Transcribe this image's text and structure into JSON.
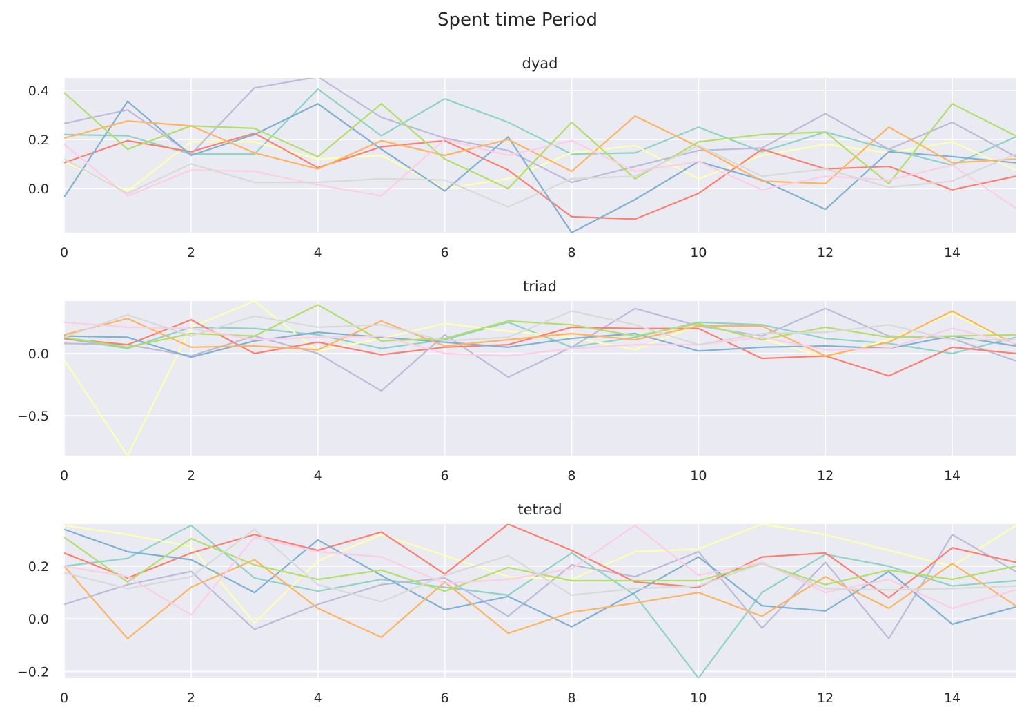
{
  "figure": {
    "title": "Spent time Period"
  },
  "colors": [
    "#8dd3c7",
    "#ffffb3",
    "#bebada",
    "#fb8072",
    "#80b1d3",
    "#fdb462",
    "#b3de69",
    "#fccde5",
    "#d9d9d9"
  ],
  "chart_data": [
    {
      "type": "line",
      "title": "dyad",
      "xlabel": "",
      "ylabel": "",
      "xlim": [
        0,
        15
      ],
      "ylim": [
        -0.18,
        0.45
      ],
      "xticks": [
        0,
        2,
        4,
        6,
        8,
        10,
        12,
        14
      ],
      "xtick_labels": [
        "0",
        "2",
        "4",
        "6",
        "8",
        "10",
        "12",
        "14"
      ],
      "yticks": [
        0.0,
        0.2,
        0.4
      ],
      "ytick_labels": [
        "0.0",
        "0.2",
        "0.4"
      ],
      "grid": true,
      "x": [
        0,
        1,
        2,
        3,
        4,
        5,
        6,
        7,
        8,
        9,
        10,
        11,
        12,
        13,
        14,
        15
      ],
      "series": [
        {
          "values": [
            0.22,
            0.215,
            0.14,
            0.14,
            0.405,
            0.215,
            0.365,
            0.27,
            0.14,
            0.145,
            0.25,
            0.15,
            0.23,
            0.16,
            0.095,
            0.21
          ]
        },
        {
          "values": [
            0.11,
            -0.01,
            0.19,
            0.19,
            0.12,
            0.135,
            0.0,
            0.04,
            0.145,
            0.175,
            0.04,
            0.135,
            0.18,
            0.145,
            0.19,
            0.075
          ]
        },
        {
          "values": [
            0.265,
            0.32,
            0.14,
            0.41,
            0.455,
            0.29,
            0.205,
            0.155,
            0.025,
            0.09,
            0.155,
            0.165,
            0.305,
            0.16,
            0.27,
            0.13
          ]
        },
        {
          "values": [
            0.105,
            0.195,
            0.15,
            0.225,
            0.085,
            0.17,
            0.195,
            0.075,
            -0.115,
            -0.125,
            -0.02,
            0.16,
            0.08,
            0.09,
            -0.005,
            0.05
          ]
        },
        {
          "values": [
            -0.035,
            0.355,
            0.135,
            0.22,
            0.345,
            0.16,
            -0.01,
            0.21,
            -0.18,
            -0.045,
            0.11,
            0.035,
            -0.085,
            0.15,
            0.13,
            0.105
          ]
        },
        {
          "values": [
            0.205,
            0.275,
            0.255,
            0.145,
            0.08,
            0.195,
            0.135,
            0.2,
            0.07,
            0.295,
            0.17,
            0.03,
            0.02,
            0.25,
            0.105,
            0.12
          ]
        },
        {
          "values": [
            0.39,
            0.16,
            0.255,
            0.245,
            0.13,
            0.345,
            0.12,
            0.0,
            0.27,
            0.04,
            0.19,
            0.22,
            0.23,
            0.02,
            0.345,
            0.215
          ]
        },
        {
          "values": [
            0.18,
            -0.03,
            0.075,
            0.07,
            0.015,
            -0.03,
            0.2,
            0.135,
            0.195,
            0.07,
            0.11,
            -0.005,
            0.05,
            0.035,
            0.095,
            -0.08
          ]
        },
        {
          "values": [
            0.12,
            -0.02,
            0.1,
            0.025,
            0.025,
            0.04,
            0.035,
            -0.075,
            0.04,
            0.05,
            0.175,
            0.05,
            0.08,
            0.005,
            0.03,
            0.14
          ]
        }
      ]
    },
    {
      "type": "line",
      "title": "triad",
      "xlabel": "",
      "ylabel": "",
      "xlim": [
        0,
        15
      ],
      "ylim": [
        -0.82,
        0.42
      ],
      "xticks": [
        0,
        2,
        4,
        6,
        8,
        10,
        12,
        14
      ],
      "xtick_labels": [
        "0",
        "2",
        "4",
        "6",
        "8",
        "10",
        "12",
        "14"
      ],
      "yticks": [
        0.0,
        -0.5
      ],
      "ytick_labels": [
        "0.0",
        "−0.5"
      ],
      "grid": true,
      "x": [
        0,
        1,
        2,
        3,
        4,
        5,
        6,
        7,
        8,
        9,
        10,
        11,
        12,
        13,
        14,
        15
      ],
      "series": [
        {
          "values": [
            0.12,
            0.04,
            0.21,
            0.2,
            0.15,
            0.04,
            0.11,
            0.25,
            0.05,
            0.13,
            0.25,
            0.23,
            0.12,
            0.08,
            0.0,
            0.13
          ]
        },
        {
          "values": [
            -0.05,
            -0.82,
            0.21,
            0.42,
            0.02,
            0.12,
            0.24,
            0.18,
            0.13,
            0.03,
            0.23,
            0.12,
            -0.03,
            0.11,
            0.32,
            0.07
          ]
        },
        {
          "values": [
            0.08,
            0.07,
            -0.02,
            0.14,
            0.0,
            -0.3,
            0.15,
            -0.19,
            0.05,
            0.36,
            0.22,
            0.14,
            0.36,
            0.14,
            0.12,
            -0.06
          ]
        },
        {
          "values": [
            0.12,
            0.07,
            0.27,
            0.0,
            0.09,
            -0.01,
            0.05,
            0.07,
            0.21,
            0.2,
            0.2,
            -0.04,
            -0.02,
            -0.18,
            0.05,
            0.0
          ]
        },
        {
          "values": [
            0.14,
            0.13,
            -0.03,
            0.1,
            0.17,
            0.13,
            0.09,
            0.05,
            0.12,
            0.16,
            0.02,
            0.05,
            0.06,
            0.04,
            0.14,
            0.06
          ]
        },
        {
          "values": [
            0.15,
            0.28,
            0.05,
            0.06,
            0.03,
            0.26,
            0.06,
            0.11,
            0.16,
            0.11,
            0.22,
            0.22,
            -0.02,
            0.09,
            0.34,
            0.07
          ]
        },
        {
          "values": [
            0.13,
            0.05,
            0.16,
            0.14,
            0.39,
            0.1,
            0.12,
            0.26,
            0.23,
            0.14,
            0.24,
            0.11,
            0.21,
            0.13,
            0.14,
            0.15
          ]
        },
        {
          "values": [
            0.25,
            0.21,
            0.2,
            0.11,
            0.13,
            0.14,
            0.0,
            -0.02,
            0.04,
            0.07,
            0.07,
            0.13,
            0.03,
            0.04,
            0.2,
            0.08
          ]
        },
        {
          "values": [
            0.13,
            0.31,
            0.14,
            0.3,
            0.21,
            0.23,
            0.1,
            0.13,
            0.34,
            0.23,
            0.07,
            0.16,
            0.17,
            0.23,
            0.11,
            0.11
          ]
        }
      ]
    },
    {
      "type": "line",
      "title": "tetrad",
      "xlabel": "",
      "ylabel": "",
      "xlim": [
        0,
        15
      ],
      "ylim": [
        -0.225,
        0.36
      ],
      "xticks": [
        0,
        2,
        4,
        6,
        8,
        10,
        12,
        14
      ],
      "xtick_labels": [
        "0",
        "2",
        "4",
        "6",
        "8",
        "10",
        "12",
        "14"
      ],
      "yticks": [
        -0.2,
        0.0,
        0.2
      ],
      "ytick_labels": [
        "−0.2",
        "0.0",
        "0.2"
      ],
      "grid": true,
      "x": [
        0,
        1,
        2,
        3,
        4,
        5,
        6,
        7,
        8,
        9,
        10,
        11,
        12,
        13,
        14,
        15
      ],
      "series": [
        {
          "values": [
            0.2,
            0.23,
            0.355,
            0.155,
            0.105,
            0.15,
            0.12,
            0.09,
            0.25,
            0.09,
            -0.225,
            0.1,
            0.245,
            0.2,
            0.125,
            0.145
          ]
        },
        {
          "values": [
            0.355,
            0.32,
            0.275,
            -0.015,
            0.22,
            0.32,
            0.24,
            0.16,
            0.15,
            0.255,
            0.265,
            0.36,
            0.32,
            0.26,
            0.2,
            0.355
          ]
        },
        {
          "values": [
            0.055,
            0.13,
            0.18,
            -0.04,
            0.055,
            0.13,
            0.155,
            0.01,
            0.205,
            0.16,
            0.255,
            -0.035,
            0.215,
            -0.075,
            0.32,
            0.18
          ]
        },
        {
          "values": [
            0.25,
            0.155,
            0.25,
            0.32,
            0.26,
            0.33,
            0.17,
            0.36,
            0.26,
            0.14,
            0.12,
            0.235,
            0.25,
            0.08,
            0.27,
            0.215
          ]
        },
        {
          "values": [
            0.34,
            0.255,
            0.225,
            0.1,
            0.3,
            0.165,
            0.035,
            0.085,
            -0.03,
            0.1,
            0.235,
            0.05,
            0.03,
            0.18,
            -0.02,
            0.045
          ]
        },
        {
          "values": [
            0.2,
            -0.075,
            0.12,
            0.225,
            0.04,
            -0.07,
            0.14,
            -0.055,
            0.025,
            0.06,
            0.1,
            0.01,
            0.16,
            0.04,
            0.21,
            0.05
          ]
        },
        {
          "values": [
            0.31,
            0.14,
            0.305,
            0.205,
            0.15,
            0.185,
            0.105,
            0.195,
            0.145,
            0.145,
            0.145,
            0.21,
            0.13,
            0.185,
            0.15,
            0.2
          ]
        },
        {
          "values": [
            0.2,
            0.16,
            0.015,
            0.31,
            0.255,
            0.235,
            0.135,
            0.15,
            0.19,
            0.355,
            0.165,
            0.215,
            0.1,
            0.15,
            0.04,
            0.11
          ]
        },
        {
          "values": [
            0.175,
            0.115,
            0.16,
            0.34,
            0.13,
            0.065,
            0.165,
            0.24,
            0.09,
            0.115,
            0.125,
            0.21,
            0.115,
            0.11,
            0.115,
            0.125
          ]
        }
      ]
    }
  ]
}
